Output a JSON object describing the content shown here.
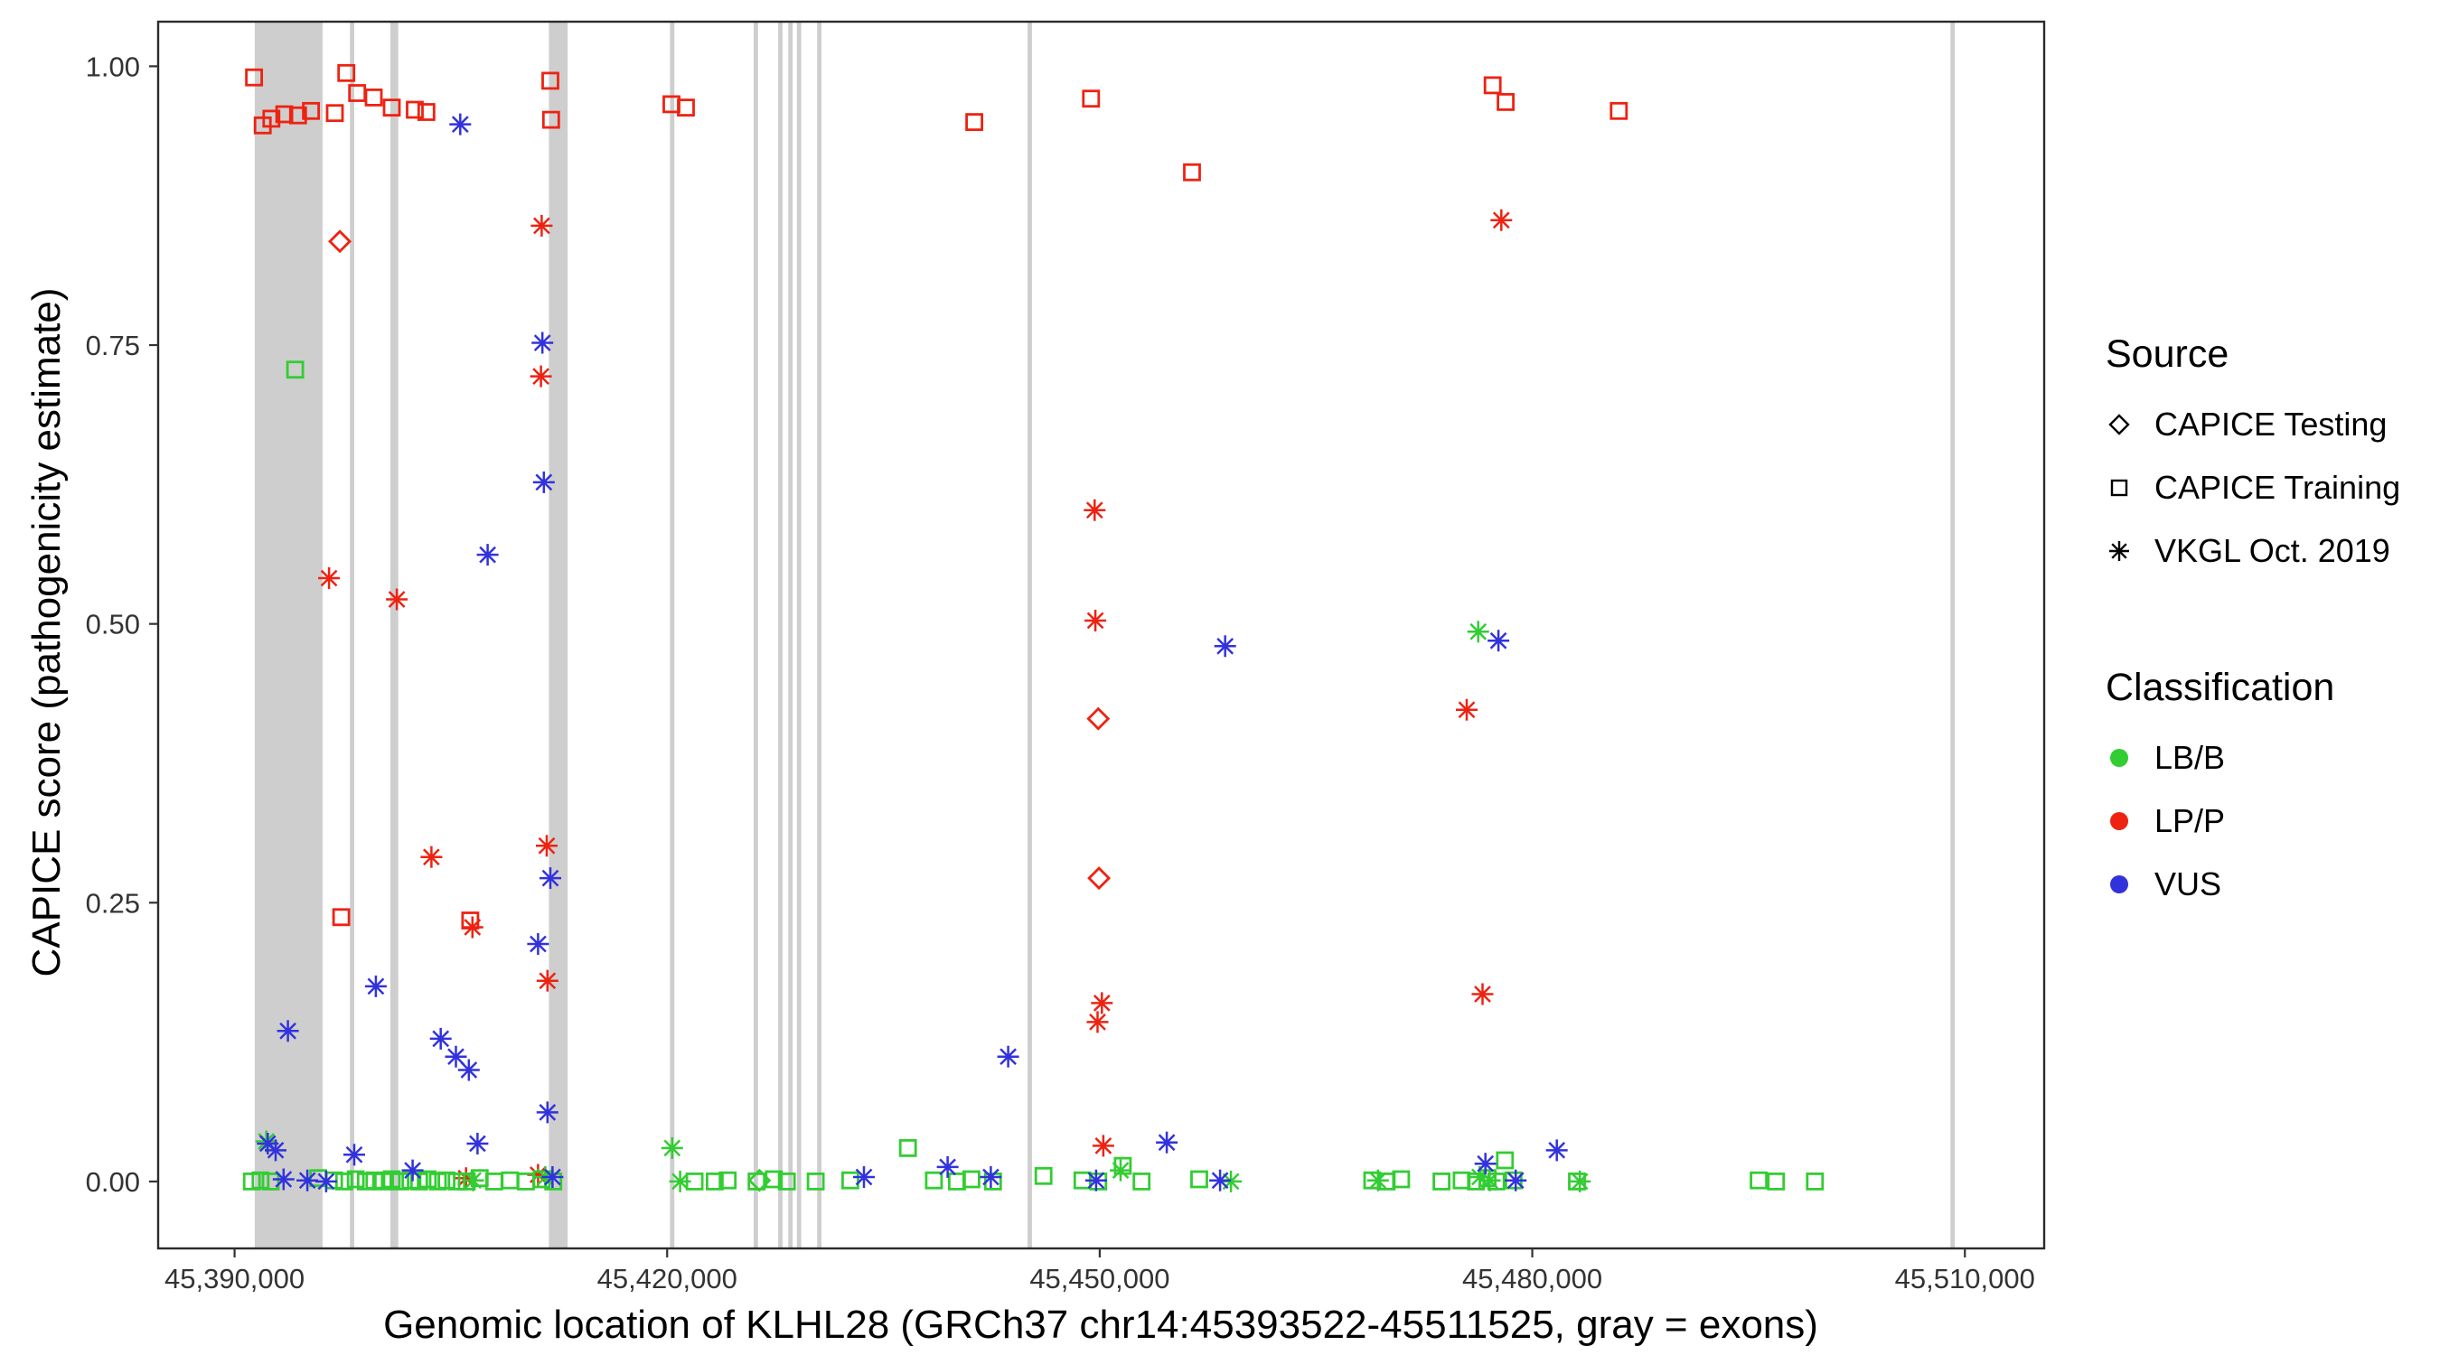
{
  "legend": {
    "source": {
      "title": "Source",
      "items": [
        {
          "label": "CAPICE Testing",
          "shape": "diamond"
        },
        {
          "label": "CAPICE Training",
          "shape": "square"
        },
        {
          "label": "VKGL Oct. 2019",
          "shape": "asterisk"
        }
      ]
    },
    "classification": {
      "title": "Classification",
      "items": [
        {
          "label": "LB/B",
          "color": "#32cd32"
        },
        {
          "label": "LP/P",
          "color": "#ee2211"
        },
        {
          "label": "VUS",
          "color": "#3232dd"
        }
      ]
    }
  },
  "chart_data": {
    "type": "scatter",
    "title": "",
    "xlabel": "Genomic location of KLHL28 (GRCh37 chr14:45393522-45511525, gray = exons)",
    "ylabel": "CAPICE score (pathogenicity estimate)",
    "xlim": [
      45384700,
      45515500
    ],
    "ylim": [
      -0.06,
      1.04
    ],
    "x_ticks": [
      45390000,
      45420000,
      45450000,
      45480000,
      45510000
    ],
    "x_tick_labels": [
      "45,390,000",
      "45,420,000",
      "45,450,000",
      "45,480,000",
      "45,510,000"
    ],
    "y_ticks": [
      0.0,
      0.25,
      0.5,
      0.75,
      1.0
    ],
    "y_tick_labels": [
      "0.00",
      "0.25",
      "0.50",
      "0.75",
      "1.00"
    ],
    "grid": false,
    "legend_position": "right",
    "exon_color": "#cecece",
    "colors": {
      "LB/B": "#32cd32",
      "LP/P": "#ee2211",
      "VUS": "#3232dd"
    },
    "shapes": {
      "testing": "diamond",
      "training": "square",
      "vkgl": "asterisk"
    },
    "exons": [
      [
        45391400,
        45396100
      ],
      [
        45398000,
        45398300
      ],
      [
        45400800,
        45401350
      ],
      [
        45411800,
        45413100
      ],
      [
        45420200,
        45420500
      ],
      [
        45426000,
        45426300
      ],
      [
        45427700,
        45428000
      ],
      [
        45428400,
        45428700
      ],
      [
        45429000,
        45429300
      ],
      [
        45430400,
        45430700
      ],
      [
        45445000,
        45445300
      ],
      [
        45509000,
        45509300
      ]
    ],
    "point_format": [
      "genomic_position",
      "capice_score",
      "source",
      "classification"
    ],
    "points": [
      [
        45391350,
        0.99,
        "training",
        "LP/P"
      ],
      [
        45391950,
        0.947,
        "training",
        "LP/P"
      ],
      [
        45392550,
        0.953,
        "training",
        "LP/P"
      ],
      [
        45393450,
        0.957,
        "training",
        "LP/P"
      ],
      [
        45394400,
        0.956,
        "training",
        "LP/P"
      ],
      [
        45395300,
        0.96,
        "training",
        "LP/P"
      ],
      [
        45396950,
        0.958,
        "training",
        "LP/P"
      ],
      [
        45397750,
        0.994,
        "training",
        "LP/P"
      ],
      [
        45398500,
        0.976,
        "training",
        "LP/P"
      ],
      [
        45399650,
        0.972,
        "training",
        "LP/P"
      ],
      [
        45400900,
        0.963,
        "training",
        "LP/P"
      ],
      [
        45402500,
        0.961,
        "training",
        "LP/P"
      ],
      [
        45403300,
        0.959,
        "training",
        "LP/P"
      ],
      [
        45411900,
        0.987,
        "training",
        "LP/P"
      ],
      [
        45411950,
        0.952,
        "training",
        "LP/P"
      ],
      [
        45420300,
        0.966,
        "training",
        "LP/P"
      ],
      [
        45421300,
        0.963,
        "training",
        "LP/P"
      ],
      [
        45441300,
        0.95,
        "training",
        "LP/P"
      ],
      [
        45449400,
        0.971,
        "training",
        "LP/P"
      ],
      [
        45456400,
        0.905,
        "training",
        "LP/P"
      ],
      [
        45477250,
        0.983,
        "training",
        "LP/P"
      ],
      [
        45478150,
        0.968,
        "training",
        "LP/P"
      ],
      [
        45486000,
        0.96,
        "training",
        "LP/P"
      ],
      [
        45397400,
        0.237,
        "training",
        "LP/P"
      ],
      [
        45406350,
        0.234,
        "training",
        "LP/P"
      ],
      [
        45397300,
        0.843,
        "testing",
        "LP/P"
      ],
      [
        45449900,
        0.415,
        "testing",
        "LP/P"
      ],
      [
        45449950,
        0.272,
        "testing",
        "LP/P"
      ],
      [
        45396550,
        0.541,
        "vkgl",
        "LP/P"
      ],
      [
        45401250,
        0.522,
        "vkgl",
        "LP/P"
      ],
      [
        45403650,
        0.291,
        "vkgl",
        "LP/P"
      ],
      [
        45406500,
        0.228,
        "vkgl",
        "LP/P"
      ],
      [
        45411300,
        0.857,
        "vkgl",
        "LP/P"
      ],
      [
        45411250,
        0.722,
        "vkgl",
        "LP/P"
      ],
      [
        45411650,
        0.301,
        "vkgl",
        "LP/P"
      ],
      [
        45411700,
        0.18,
        "vkgl",
        "LP/P"
      ],
      [
        45411050,
        0.006,
        "vkgl",
        "LP/P"
      ],
      [
        45406050,
        0.003,
        "vkgl",
        "LP/P"
      ],
      [
        45449650,
        0.602,
        "vkgl",
        "LP/P"
      ],
      [
        45449700,
        0.503,
        "vkgl",
        "LP/P"
      ],
      [
        45450150,
        0.16,
        "vkgl",
        "LP/P"
      ],
      [
        45449850,
        0.143,
        "vkgl",
        "LP/P"
      ],
      [
        45450250,
        0.032,
        "vkgl",
        "LP/P"
      ],
      [
        45477850,
        0.862,
        "vkgl",
        "LP/P"
      ],
      [
        45475450,
        0.423,
        "vkgl",
        "LP/P"
      ],
      [
        45476550,
        0.168,
        "vkgl",
        "LP/P"
      ],
      [
        45394200,
        0.728,
        "training",
        "LB/B"
      ],
      [
        45391200,
        0.0,
        "training",
        "LB/B"
      ],
      [
        45391800,
        0.001,
        "training",
        "LB/B"
      ],
      [
        45392500,
        0.0,
        "training",
        "LB/B"
      ],
      [
        45395800,
        0.003,
        "training",
        "LB/B"
      ],
      [
        45396900,
        0.001,
        "training",
        "LB/B"
      ],
      [
        45397600,
        0.0,
        "training",
        "LB/B"
      ],
      [
        45398400,
        0.002,
        "training",
        "LB/B"
      ],
      [
        45399100,
        0.0,
        "training",
        "LB/B"
      ],
      [
        45399700,
        0.001,
        "training",
        "LB/B"
      ],
      [
        45400300,
        0.0,
        "training",
        "LB/B"
      ],
      [
        45400900,
        0.002,
        "training",
        "LB/B"
      ],
      [
        45401500,
        0.0,
        "training",
        "LB/B"
      ],
      [
        45402200,
        0.001,
        "training",
        "LB/B"
      ],
      [
        45402800,
        0.0,
        "training",
        "LB/B"
      ],
      [
        45403400,
        0.002,
        "training",
        "LB/B"
      ],
      [
        45404100,
        0.0,
        "training",
        "LB/B"
      ],
      [
        45404700,
        0.001,
        "training",
        "LB/B"
      ],
      [
        45405400,
        0.0,
        "training",
        "LB/B"
      ],
      [
        45406100,
        0.0,
        "training",
        "LB/B"
      ],
      [
        45407000,
        0.003,
        "training",
        "LB/B"
      ],
      [
        45408000,
        0.0,
        "training",
        "LB/B"
      ],
      [
        45409100,
        0.001,
        "training",
        "LB/B"
      ],
      [
        45410200,
        0.0,
        "training",
        "LB/B"
      ],
      [
        45411300,
        0.002,
        "training",
        "LB/B"
      ],
      [
        45412100,
        0.0,
        "training",
        "LB/B"
      ],
      [
        45421900,
        0.0,
        "training",
        "LB/B"
      ],
      [
        45423300,
        0.0,
        "training",
        "LB/B"
      ],
      [
        45424200,
        0.001,
        "training",
        "LB/B"
      ],
      [
        45426200,
        0.0,
        "training",
        "LB/B"
      ],
      [
        45427400,
        0.002,
        "training",
        "LB/B"
      ],
      [
        45428300,
        0.0,
        "training",
        "LB/B"
      ],
      [
        45430300,
        0.0,
        "training",
        "LB/B"
      ],
      [
        45432700,
        0.001,
        "training",
        "LB/B"
      ],
      [
        45436700,
        0.03,
        "training",
        "LB/B"
      ],
      [
        45438500,
        0.001,
        "training",
        "LB/B"
      ],
      [
        45440100,
        0.0,
        "training",
        "LB/B"
      ],
      [
        45441100,
        0.002,
        "training",
        "LB/B"
      ],
      [
        45442600,
        0.0,
        "training",
        "LB/B"
      ],
      [
        45446100,
        0.005,
        "training",
        "LB/B"
      ],
      [
        45448800,
        0.001,
        "training",
        "LB/B"
      ],
      [
        45449900,
        0.0,
        "training",
        "LB/B"
      ],
      [
        45451600,
        0.014,
        "training",
        "LB/B"
      ],
      [
        45452900,
        0.0,
        "training",
        "LB/B"
      ],
      [
        45456900,
        0.002,
        "training",
        "LB/B"
      ],
      [
        45468900,
        0.001,
        "training",
        "LB/B"
      ],
      [
        45469900,
        0.0,
        "training",
        "LB/B"
      ],
      [
        45470900,
        0.002,
        "training",
        "LB/B"
      ],
      [
        45473700,
        0.0,
        "training",
        "LB/B"
      ],
      [
        45475100,
        0.001,
        "training",
        "LB/B"
      ],
      [
        45476100,
        0.0,
        "training",
        "LB/B"
      ],
      [
        45476900,
        0.003,
        "training",
        "LB/B"
      ],
      [
        45477500,
        0.0,
        "training",
        "LB/B"
      ],
      [
        45478100,
        0.019,
        "training",
        "LB/B"
      ],
      [
        45478700,
        0.001,
        "training",
        "LB/B"
      ],
      [
        45483100,
        0.0,
        "training",
        "LB/B"
      ],
      [
        45495700,
        0.001,
        "training",
        "LB/B"
      ],
      [
        45496900,
        0.0,
        "training",
        "LB/B"
      ],
      [
        45499600,
        0.0,
        "training",
        "LB/B"
      ],
      [
        45426400,
        0.001,
        "testing",
        "LB/B"
      ],
      [
        45476250,
        0.493,
        "vkgl",
        "LB/B"
      ],
      [
        45392200,
        0.036,
        "vkgl",
        "LB/B"
      ],
      [
        45406550,
        0.001,
        "vkgl",
        "LB/B"
      ],
      [
        45411550,
        0.004,
        "vkgl",
        "LB/B"
      ],
      [
        45420350,
        0.03,
        "vkgl",
        "LB/B"
      ],
      [
        45420900,
        0.0,
        "vkgl",
        "LB/B"
      ],
      [
        45451450,
        0.01,
        "vkgl",
        "LB/B"
      ],
      [
        45459100,
        0.0,
        "vkgl",
        "LB/B"
      ],
      [
        45469300,
        0.001,
        "vkgl",
        "LB/B"
      ],
      [
        45476350,
        0.004,
        "vkgl",
        "LB/B"
      ],
      [
        45477050,
        0.001,
        "vkgl",
        "LB/B"
      ],
      [
        45483300,
        0.0,
        "vkgl",
        "LB/B"
      ],
      [
        45405650,
        0.948,
        "vkgl",
        "VUS"
      ],
      [
        45411350,
        0.752,
        "vkgl",
        "VUS"
      ],
      [
        45411450,
        0.627,
        "vkgl",
        "VUS"
      ],
      [
        45407550,
        0.562,
        "vkgl",
        "VUS"
      ],
      [
        45411900,
        0.272,
        "vkgl",
        "VUS"
      ],
      [
        45411050,
        0.213,
        "vkgl",
        "VUS"
      ],
      [
        45399800,
        0.175,
        "vkgl",
        "VUS"
      ],
      [
        45393700,
        0.135,
        "vkgl",
        "VUS"
      ],
      [
        45404300,
        0.128,
        "vkgl",
        "VUS"
      ],
      [
        45405350,
        0.112,
        "vkgl",
        "VUS"
      ],
      [
        45406250,
        0.1,
        "vkgl",
        "VUS"
      ],
      [
        45411700,
        0.062,
        "vkgl",
        "VUS"
      ],
      [
        45443650,
        0.112,
        "vkgl",
        "VUS"
      ],
      [
        45458700,
        0.48,
        "vkgl",
        "VUS"
      ],
      [
        45477650,
        0.485,
        "vkgl",
        "VUS"
      ],
      [
        45454650,
        0.035,
        "vkgl",
        "VUS"
      ],
      [
        45481700,
        0.028,
        "vkgl",
        "VUS"
      ],
      [
        45392300,
        0.034,
        "vkgl",
        "VUS"
      ],
      [
        45392850,
        0.028,
        "vkgl",
        "VUS"
      ],
      [
        45393400,
        0.002,
        "vkgl",
        "VUS"
      ],
      [
        45395050,
        0.001,
        "vkgl",
        "VUS"
      ],
      [
        45396350,
        0.0,
        "vkgl",
        "VUS"
      ],
      [
        45398300,
        0.024,
        "vkgl",
        "VUS"
      ],
      [
        45402350,
        0.01,
        "vkgl",
        "VUS"
      ],
      [
        45406850,
        0.034,
        "vkgl",
        "VUS"
      ],
      [
        45412050,
        0.004,
        "vkgl",
        "VUS"
      ],
      [
        45433650,
        0.004,
        "vkgl",
        "VUS"
      ],
      [
        45439450,
        0.013,
        "vkgl",
        "VUS"
      ],
      [
        45442450,
        0.004,
        "vkgl",
        "VUS"
      ],
      [
        45449750,
        0.001,
        "vkgl",
        "VUS"
      ],
      [
        45458350,
        0.001,
        "vkgl",
        "VUS"
      ],
      [
        45476750,
        0.016,
        "vkgl",
        "VUS"
      ],
      [
        45478850,
        0.001,
        "vkgl",
        "VUS"
      ]
    ]
  }
}
